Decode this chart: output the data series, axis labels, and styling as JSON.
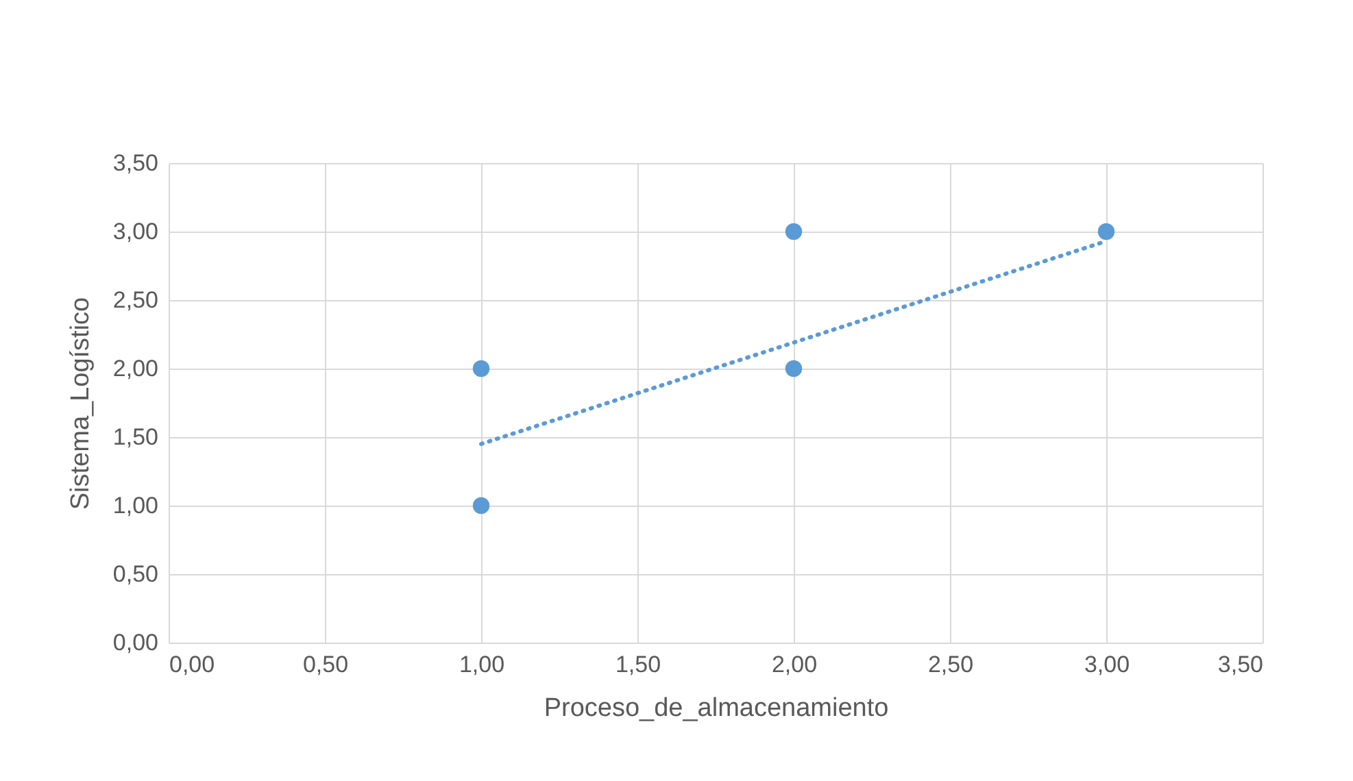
{
  "chart_data": {
    "type": "scatter",
    "xlabel": "Proceso_de_almacenamiento",
    "ylabel": "Sistema_Logístico",
    "series": [
      {
        "color": "#5b9bd5",
        "x": [
          1,
          1,
          2,
          2,
          3
        ],
        "values": [
          2,
          1,
          3,
          2,
          3
        ],
        "marker": "circle"
      },
      {
        "type": "line",
        "color": "#5b9bd5",
        "x": [
          1,
          3
        ],
        "values": [
          1.45,
          2.93
        ],
        "line_style": "dotted",
        "marker": "none"
      }
    ],
    "xlim": [
      0,
      3.5
    ],
    "ylim": [
      0,
      3.5
    ],
    "xticks": [
      {
        "value": 0,
        "label": "0,00"
      },
      {
        "value": 0.5,
        "label": "0,50"
      },
      {
        "value": 1,
        "label": "1,00"
      },
      {
        "value": 1.5,
        "label": "1,50"
      },
      {
        "value": 2,
        "label": "2,00"
      },
      {
        "value": 2.5,
        "label": "2,50"
      },
      {
        "value": 3,
        "label": "3,00"
      },
      {
        "value": 3.5,
        "label": "3,50"
      }
    ],
    "yticks": [
      {
        "value": 0,
        "label": "0,00"
      },
      {
        "value": 0.5,
        "label": "0,50"
      },
      {
        "value": 1,
        "label": "1,00"
      },
      {
        "value": 1.5,
        "label": "1,50"
      },
      {
        "value": 2,
        "label": "2,00"
      },
      {
        "value": 2.5,
        "label": "2,50"
      },
      {
        "value": 3,
        "label": "3,00"
      },
      {
        "value": 3.5,
        "label": "3,50"
      }
    ],
    "grid": true
  }
}
